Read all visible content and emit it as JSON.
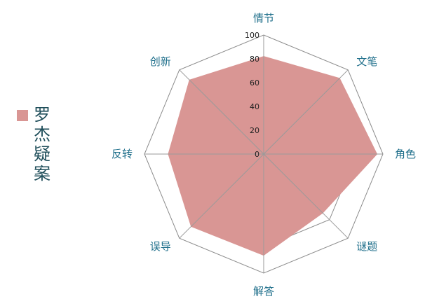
{
  "chart_data": {
    "type": "radar",
    "categories": [
      "情节",
      "文笔",
      "角色",
      "谜题",
      "解答",
      "误导",
      "反转",
      "创新"
    ],
    "series": [
      {
        "name": "罗杰疑案",
        "values": [
          82,
          90,
          95,
          70,
          85,
          86,
          80,
          88
        ],
        "color": "#d99694"
      }
    ],
    "rlim": [
      0,
      100
    ],
    "ticks": [
      "0",
      "20",
      "40",
      "60",
      "80",
      "100"
    ],
    "legend_position": "left"
  }
}
